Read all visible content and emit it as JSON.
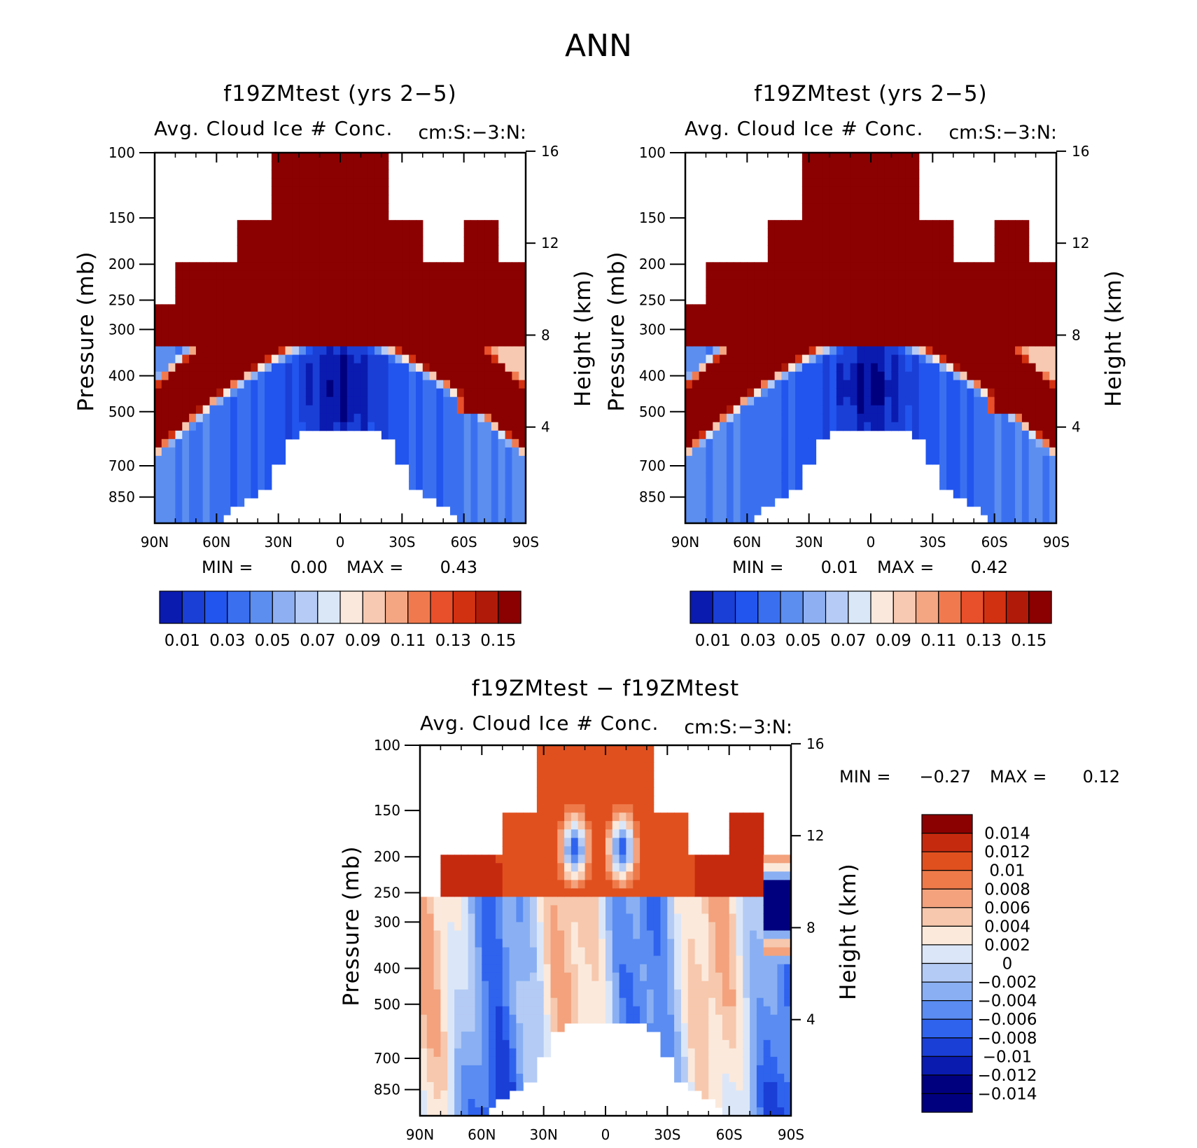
{
  "page_title": "ANN",
  "colors": {
    "sequential": [
      "#00007f",
      "#0a1bb0",
      "#1a3fd6",
      "#2255ee",
      "#3a70f0",
      "#5c8ef0",
      "#8eb0f2",
      "#b6ccf6",
      "#d9e7f7",
      "#fbe8dc",
      "#f8c9b2",
      "#f4a683",
      "#f07a4e",
      "#e8502b",
      "#d23111",
      "#b01b09",
      "#8b0000"
    ],
    "difference": [
      "#00007f",
      "#0a1bb0",
      "#1a3fd6",
      "#2f63ee",
      "#5a8cf2",
      "#8ab0f3",
      "#b4cbf5",
      "#dbe7f8",
      "#fbe9dc",
      "#f7c8ad",
      "#f3a27d",
      "#ee7a4a",
      "#e0501f",
      "#c52a0f",
      "#8b0000"
    ]
  },
  "chart_data": [
    {
      "type": "heatmap",
      "title": "f19ZMtest (yrs 2−5)",
      "subtitle": "Avg. Cloud Ice # Conc.",
      "units": "cm:S:−3:N:",
      "ylabel": "Pressure (mb)",
      "y2label": "Height (km)",
      "x_ticks": [
        "90N",
        "60N",
        "30N",
        "0",
        "30S",
        "60S",
        "90S"
      ],
      "y_ticks": [
        100,
        150,
        200,
        250,
        300,
        400,
        500,
        700,
        850
      ],
      "y2_ticks": [
        16,
        12,
        8,
        4
      ],
      "ylim": [
        100,
        1000
      ],
      "min_label": "MIN =",
      "min_value": "0.00",
      "max_label": "MAX =",
      "max_value": "0.43",
      "colorbar_labels": [
        "0.01",
        "0.03",
        "0.05",
        "0.07",
        "0.09",
        "0.11",
        "0.13",
        "0.15"
      ],
      "colorbar_levels": [
        0.01,
        0.02,
        0.03,
        0.04,
        0.05,
        0.06,
        0.07,
        0.08,
        0.09,
        0.1,
        0.11,
        0.12,
        0.13,
        0.14,
        0.15
      ]
    },
    {
      "type": "heatmap",
      "title": "f19ZMtest (yrs 2−5)",
      "subtitle": "Avg. Cloud Ice # Conc.",
      "units": "cm:S:−3:N:",
      "ylabel": "Pressure (mb)",
      "y2label": "Height (km)",
      "x_ticks": [
        "90N",
        "60N",
        "30N",
        "0",
        "30S",
        "60S",
        "90S"
      ],
      "y_ticks": [
        100,
        150,
        200,
        250,
        300,
        400,
        500,
        700,
        850
      ],
      "y2_ticks": [
        16,
        12,
        8,
        4
      ],
      "ylim": [
        100,
        1000
      ],
      "min_label": "MIN =",
      "min_value": "0.01",
      "max_label": "MAX =",
      "max_value": "0.42",
      "colorbar_labels": [
        "0.01",
        "0.03",
        "0.05",
        "0.07",
        "0.09",
        "0.11",
        "0.13",
        "0.15"
      ],
      "colorbar_levels": [
        0.01,
        0.02,
        0.03,
        0.04,
        0.05,
        0.06,
        0.07,
        0.08,
        0.09,
        0.1,
        0.11,
        0.12,
        0.13,
        0.14,
        0.15
      ]
    },
    {
      "type": "heatmap",
      "title": "f19ZMtest − f19ZMtest",
      "subtitle": "Avg. Cloud Ice # Conc.",
      "units": "cm:S:−3:N:",
      "ylabel": "Pressure (mb)",
      "y2label": "Height (km)",
      "x_ticks": [
        "90N",
        "60N",
        "30N",
        "0",
        "30S",
        "60S",
        "90S"
      ],
      "y_ticks": [
        100,
        150,
        200,
        250,
        300,
        400,
        500,
        700,
        850
      ],
      "y2_ticks": [
        16,
        12,
        8,
        4
      ],
      "ylim": [
        100,
        1000
      ],
      "min_label": "MIN =",
      "min_value": "−0.27",
      "max_label": "MAX =",
      "max_value": "0.12",
      "colorbar_labels": [
        "0.014",
        "0.012",
        "0.01",
        "0.008",
        "0.006",
        "0.004",
        "0.002",
        "0",
        "−0.002",
        "−0.004",
        "−0.006",
        "−0.008",
        "−0.01",
        "−0.012",
        "−0.014"
      ],
      "colorbar_levels": [
        -0.014,
        -0.012,
        -0.01,
        -0.008,
        -0.006,
        -0.004,
        -0.002,
        0,
        0.002,
        0.004,
        0.006,
        0.008,
        0.01,
        0.012,
        0.014
      ]
    }
  ]
}
